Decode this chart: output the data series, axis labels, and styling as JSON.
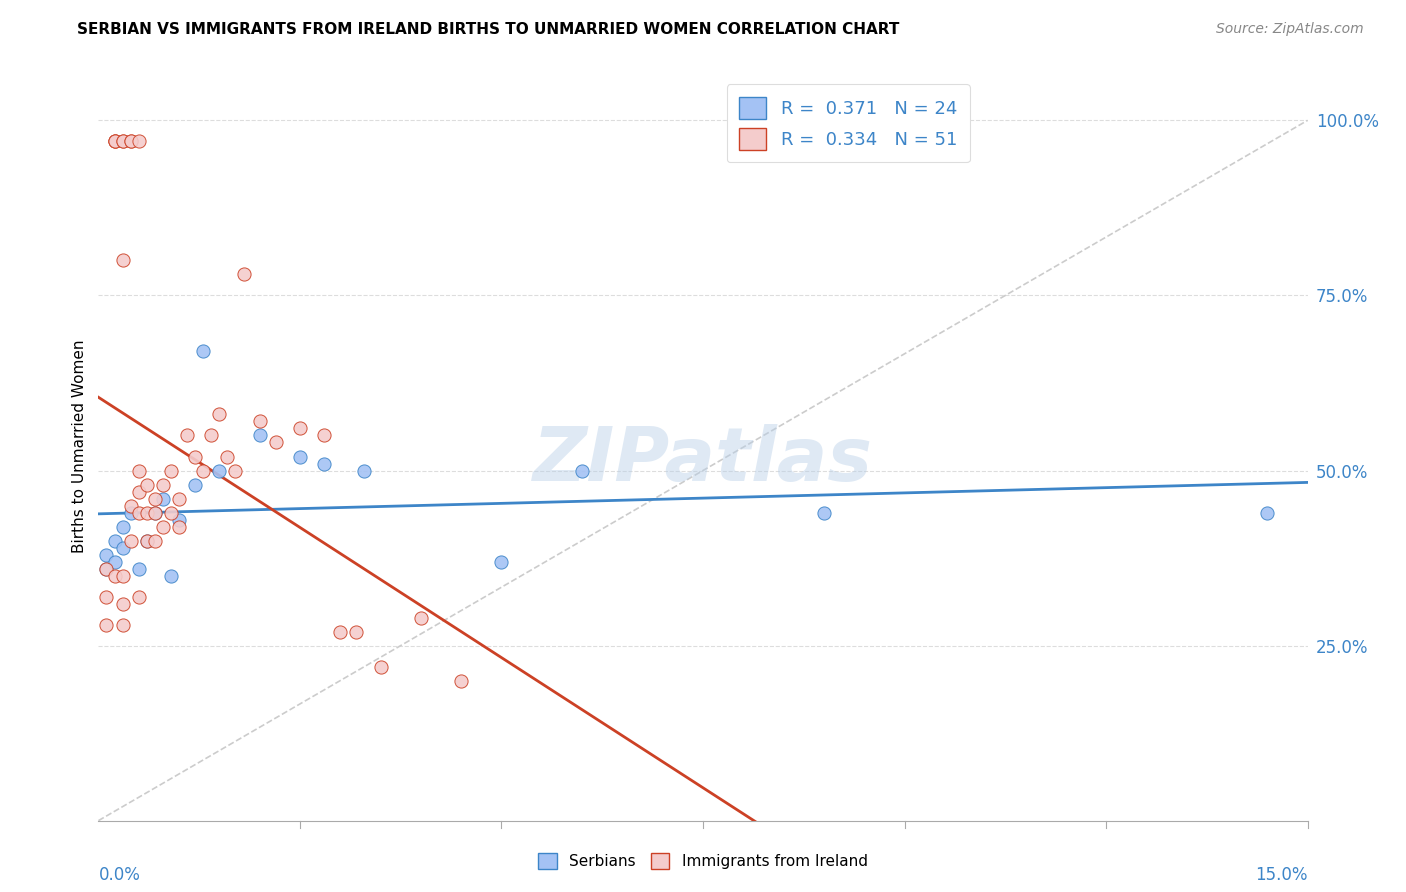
{
  "title": "SERBIAN VS IMMIGRANTS FROM IRELAND BIRTHS TO UNMARRIED WOMEN CORRELATION CHART",
  "source": "Source: ZipAtlas.com",
  "ylabel": "Births to Unmarried Women",
  "watermark": "ZIPatlas",
  "color_serbian": "#a4c2f4",
  "color_ireland": "#f4cccc",
  "color_trendline_serbian": "#3d85c8",
  "color_trendline_ireland": "#cc4125",
  "color_diagonal": "#cccccc",
  "xmin": 0.0,
  "xmax": 0.15,
  "ymin": 0.0,
  "ymax": 1.07,
  "serbian_x": [
    0.001,
    0.001,
    0.002,
    0.002,
    0.003,
    0.003,
    0.004,
    0.005,
    0.006,
    0.007,
    0.008,
    0.009,
    0.01,
    0.012,
    0.013,
    0.015,
    0.02,
    0.025,
    0.028,
    0.033,
    0.05,
    0.06,
    0.09,
    0.145
  ],
  "serbian_y": [
    0.36,
    0.38,
    0.37,
    0.4,
    0.39,
    0.42,
    0.44,
    0.36,
    0.4,
    0.44,
    0.46,
    0.35,
    0.43,
    0.48,
    0.67,
    0.5,
    0.55,
    0.52,
    0.51,
    0.5,
    0.37,
    0.5,
    0.44,
    0.44
  ],
  "ireland_x": [
    0.001,
    0.001,
    0.001,
    0.002,
    0.002,
    0.002,
    0.002,
    0.003,
    0.003,
    0.003,
    0.003,
    0.003,
    0.003,
    0.004,
    0.004,
    0.004,
    0.004,
    0.005,
    0.005,
    0.005,
    0.005,
    0.005,
    0.006,
    0.006,
    0.006,
    0.007,
    0.007,
    0.007,
    0.008,
    0.008,
    0.009,
    0.009,
    0.01,
    0.01,
    0.011,
    0.012,
    0.013,
    0.014,
    0.015,
    0.016,
    0.017,
    0.018,
    0.02,
    0.022,
    0.025,
    0.028,
    0.03,
    0.032,
    0.035,
    0.04,
    0.045
  ],
  "ireland_y": [
    0.36,
    0.32,
    0.28,
    0.97,
    0.97,
    0.97,
    0.35,
    0.97,
    0.97,
    0.8,
    0.35,
    0.31,
    0.28,
    0.97,
    0.97,
    0.45,
    0.4,
    0.97,
    0.5,
    0.47,
    0.44,
    0.32,
    0.44,
    0.48,
    0.4,
    0.46,
    0.44,
    0.4,
    0.48,
    0.42,
    0.5,
    0.44,
    0.46,
    0.42,
    0.55,
    0.52,
    0.5,
    0.55,
    0.58,
    0.52,
    0.5,
    0.78,
    0.57,
    0.54,
    0.56,
    0.55,
    0.27,
    0.27,
    0.22,
    0.29,
    0.2
  ]
}
